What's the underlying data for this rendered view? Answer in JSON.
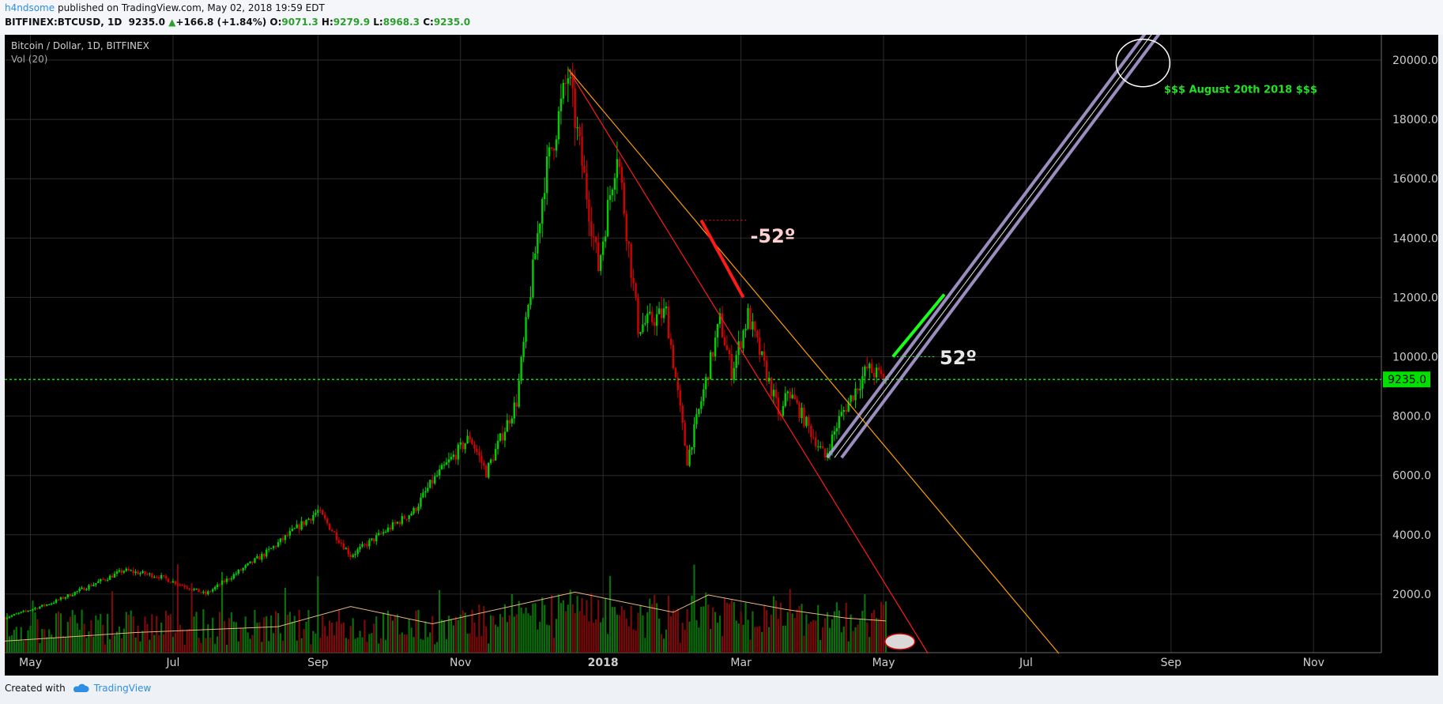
{
  "header": {
    "user": "h4ndsome",
    "published_text": "published on TradingView.com, May 02, 2018 19:59 EDT",
    "symbol": "BITFINEX:BTCUSD, 1D",
    "last": "9235.0",
    "change": "+166.8 (+1.84%)",
    "ohlc": {
      "o_label": "O:",
      "o": "9071.3",
      "h_label": "H:",
      "h": "9279.9",
      "l_label": "L:",
      "l": "8968.3",
      "c_label": "C:",
      "c": "9235.0"
    }
  },
  "legend": {
    "title": "Bitcoin / Dollar, 1D, BITFINEX",
    "volume": "Vol (20)"
  },
  "footer": {
    "created_with": "Created with",
    "brand": "TradingView"
  },
  "colors": {
    "up": "#00d000",
    "down": "#d40000",
    "price_line": "#00e000",
    "grid": "#2c2c2c",
    "resistance": "#ff9d00",
    "trend_red": "#ff1a1a",
    "channel": "#b7a6e0"
  },
  "chart_data": {
    "type": "candlestick",
    "title": "Bitcoin / Dollar, 1D, BITFINEX",
    "y_ticks": [
      "20000.0",
      "18000.0",
      "16000.0",
      "14000.0",
      "12000.0",
      "10000.0",
      "8000.0",
      "6000.0",
      "4000.0",
      "2000.0"
    ],
    "x_ticks": [
      "May",
      "Jul",
      "Sep",
      "Nov",
      "2018",
      "Mar",
      "May",
      "Jul",
      "Sep",
      "Nov"
    ],
    "ylim": [
      0,
      20500
    ],
    "xlim": [
      "2017-04-20",
      "2018-11-30"
    ],
    "last_price": "9235.0",
    "grid": true,
    "price_path": [
      {
        "date": "2017-04-20",
        "price": 1200
      },
      {
        "date": "2017-05-10",
        "price": 1700
      },
      {
        "date": "2017-06-10",
        "price": 2800
      },
      {
        "date": "2017-06-25",
        "price": 2600
      },
      {
        "date": "2017-07-15",
        "price": 2000
      },
      {
        "date": "2017-08-10",
        "price": 3400
      },
      {
        "date": "2017-09-01",
        "price": 4800
      },
      {
        "date": "2017-09-15",
        "price": 3300
      },
      {
        "date": "2017-10-12",
        "price": 4800
      },
      {
        "date": "2017-10-20",
        "price": 5800
      },
      {
        "date": "2017-11-05",
        "price": 7300
      },
      {
        "date": "2017-11-12",
        "price": 6100
      },
      {
        "date": "2017-11-25",
        "price": 8500
      },
      {
        "date": "2017-12-07",
        "price": 16000
      },
      {
        "date": "2017-12-17",
        "price": 19500
      },
      {
        "date": "2017-12-30",
        "price": 13000
      },
      {
        "date": "2018-01-07",
        "price": 17000
      },
      {
        "date": "2018-01-16",
        "price": 11000
      },
      {
        "date": "2018-01-28",
        "price": 11500
      },
      {
        "date": "2018-02-06",
        "price": 6500
      },
      {
        "date": "2018-02-20",
        "price": 11200
      },
      {
        "date": "2018-02-25",
        "price": 9500
      },
      {
        "date": "2018-03-04",
        "price": 11400
      },
      {
        "date": "2018-03-18",
        "price": 7900
      },
      {
        "date": "2018-03-21",
        "price": 8900
      },
      {
        "date": "2018-04-06",
        "price": 6600
      },
      {
        "date": "2018-04-12",
        "price": 7900
      },
      {
        "date": "2018-04-24",
        "price": 9600
      },
      {
        "date": "2018-05-02",
        "price": 9235
      }
    ],
    "volume_ma_path": [
      {
        "date": "2017-04-20",
        "value": 400
      },
      {
        "date": "2017-06-15",
        "value": 700
      },
      {
        "date": "2017-08-15",
        "value": 900
      },
      {
        "date": "2017-09-15",
        "value": 1600
      },
      {
        "date": "2017-10-20",
        "value": 1000
      },
      {
        "date": "2017-12-20",
        "value": 2100
      },
      {
        "date": "2018-01-31",
        "value": 1400
      },
      {
        "date": "2018-02-15",
        "value": 2000
      },
      {
        "date": "2018-03-20",
        "value": 1500
      },
      {
        "date": "2018-04-15",
        "value": 1200
      },
      {
        "date": "2018-05-02",
        "value": 1100
      }
    ],
    "drawings": {
      "resistance_line": {
        "from": {
          "date": "2017-12-17",
          "price": 19700
        },
        "to": {
          "date": "2018-07-15",
          "price": 0
        }
      },
      "down_trend_line": {
        "from": {
          "date": "2017-12-17",
          "price": 19700
        },
        "to": {
          "date": "2018-05-20",
          "price": 0
        }
      },
      "down_angle_label": "-52º",
      "down_angle_segment": {
        "from": {
          "date": "2018-02-12",
          "price": 14600
        },
        "to": {
          "date": "2018-03-02",
          "price": 12000
        }
      },
      "up_channel": {
        "from": {
          "date": "2018-04-10",
          "price": 6600
        },
        "to": {
          "date": "2018-08-25",
          "price": 21000
        }
      },
      "up_angle_label": "52º",
      "up_angle_segment": {
        "from": {
          "date": "2018-05-05",
          "price": 10000
        },
        "to": {
          "date": "2018-05-27",
          "price": 12100
        }
      },
      "target_annotation": "$$$ August 20th 2018 $$$",
      "target_circle": {
        "date": "2018-08-20",
        "price": 19900
      }
    }
  }
}
